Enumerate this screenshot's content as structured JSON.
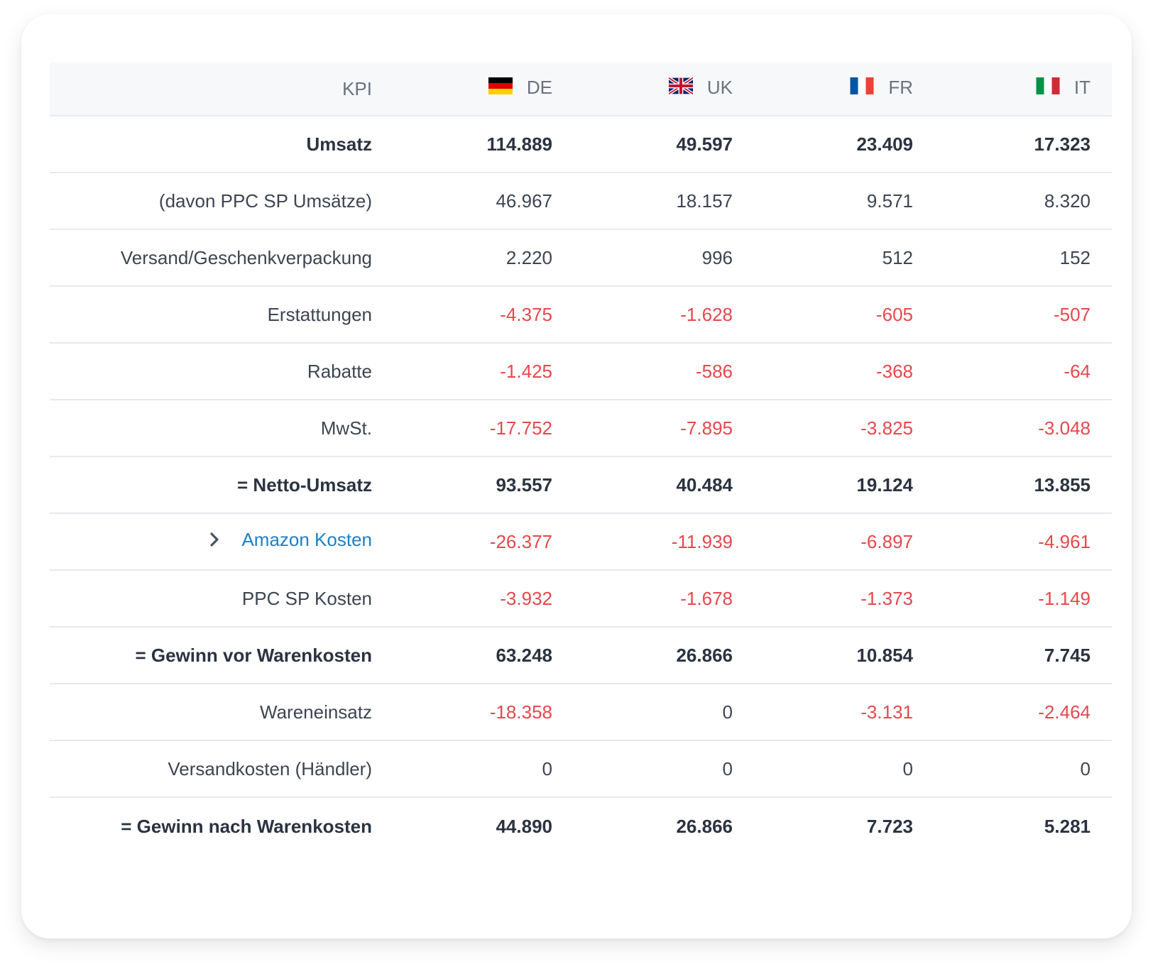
{
  "table": {
    "header": {
      "kpi": "KPI",
      "markets": [
        {
          "code": "DE",
          "flag": "germany-flag-icon"
        },
        {
          "code": "UK",
          "flag": "uk-flag-icon"
        },
        {
          "code": "FR",
          "flag": "france-flag-icon"
        },
        {
          "code": "IT",
          "flag": "italy-flag-icon"
        }
      ]
    },
    "rows": [
      {
        "label": "Umsatz",
        "values": [
          "114.889",
          "49.597",
          "23.409",
          "17.323"
        ]
      },
      {
        "label": "(davon PPC SP Umsätze)",
        "values": [
          "46.967",
          "18.157",
          "9.571",
          "8.320"
        ]
      },
      {
        "label": "Versand/Geschenkverpackung",
        "values": [
          "2.220",
          "996",
          "512",
          "152"
        ]
      },
      {
        "label": "Erstattungen",
        "values": [
          "-4.375",
          "-1.628",
          "-605",
          "-507"
        ]
      },
      {
        "label": "Rabatte",
        "values": [
          "-1.425",
          "-586",
          "-368",
          "-64"
        ]
      },
      {
        "label": "MwSt.",
        "values": [
          "-17.752",
          "-7.895",
          "-3.825",
          "-3.048"
        ]
      },
      {
        "label": "= Netto-Umsatz",
        "values": [
          "93.557",
          "40.484",
          "19.124",
          "13.855"
        ]
      },
      {
        "label": "Amazon Kosten",
        "values": [
          "-26.377",
          "-11.939",
          "-6.897",
          "-4.961"
        ]
      },
      {
        "label": "PPC SP Kosten",
        "values": [
          "-3.932",
          "-1.678",
          "-1.373",
          "-1.149"
        ]
      },
      {
        "label": "= Gewinn vor Warenkosten",
        "values": [
          "63.248",
          "26.866",
          "10.854",
          "7.745"
        ]
      },
      {
        "label": "Wareneinsatz",
        "values": [
          "-18.358",
          "0",
          "-3.131",
          "-2.464"
        ]
      },
      {
        "label": "Versandkosten (Händler)",
        "values": [
          "0",
          "0",
          "0",
          "0"
        ]
      },
      {
        "label": "= Gewinn nach Warenkosten",
        "values": [
          "44.890",
          "26.866",
          "7.723",
          "5.281"
        ]
      }
    ]
  },
  "colors": {
    "negative": "#e5484d",
    "link": "#1f7fc4",
    "text": "#3d4552",
    "header_bg": "#f7f8fa"
  }
}
